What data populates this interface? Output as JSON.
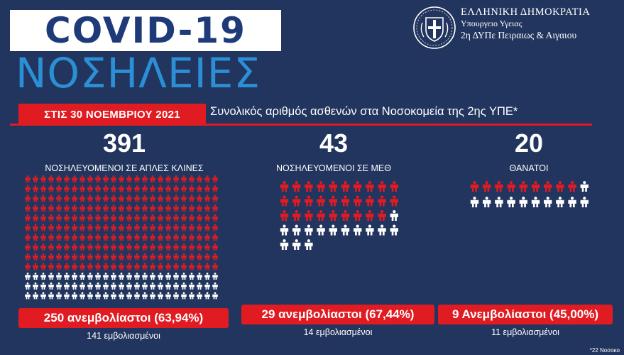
{
  "header": {
    "title": "COVID-19",
    "subtitle": "ΝΟΣΗΛΕΙΕΣ"
  },
  "organization": {
    "line1": "ΕΛΛΗΝΙΚΗ ΔΗΜΟΚΡΑΤΙΑ",
    "line2": "Υπουργειο Υγειας",
    "line3": "2η ΔΥΠε Πειραιως & Αιγαιου",
    "seal_icon": "greek-coat-of-arms-icon"
  },
  "banner": {
    "date": "ΣΤΙΣ 30 ΝΟΕΜΒΡΙΟΥ 2021",
    "description": "Συνολικός αριθμός ασθενών στα Νοσοκομεία της 2ης ΥΠΕ*"
  },
  "colors": {
    "background": "#22355e",
    "accent_red": "#e11b22",
    "title_blue": "#1f3a78",
    "subtitle_blue": "#2b8fd6",
    "icon_red": "#e11b22",
    "icon_white": "#ffffff"
  },
  "stats": [
    {
      "total": "391",
      "label": "ΝΟΣΗΛΕΥΟΜΕΝΟΙ ΣΕ ΑΠΛΕΣ ΚΛΙΝΕΣ",
      "unvaccinated_text": "250 ανεμβολίαστοι (63,94%)",
      "vaccinated_text": "141 εμβολιασμένοι",
      "total_count": 391,
      "unvaccinated_count": 250,
      "vaccinated_count": 141,
      "icon": "person-icon"
    },
    {
      "total": "43",
      "label": "ΝΟΣΗΛΕΥΟΜΕΝΟΙ ΣΕ ΜΕΘ",
      "unvaccinated_text": "29 ανεμβολίαστοι (67,44%)",
      "vaccinated_text": "14 εμβολιασμένοι",
      "total_count": 43,
      "unvaccinated_count": 29,
      "vaccinated_count": 14,
      "icon": "person-icon"
    },
    {
      "total": "20",
      "label": "ΘΑΝΑΤΟΙ",
      "unvaccinated_text": "9 Ανεμβολίαστοι (45,00%)",
      "vaccinated_text": "11 εμβολιασμένοι",
      "total_count": 20,
      "unvaccinated_count": 9,
      "vaccinated_count": 11,
      "icon": "person-icon"
    }
  ],
  "footnote": "*22 Νοσοκο"
}
